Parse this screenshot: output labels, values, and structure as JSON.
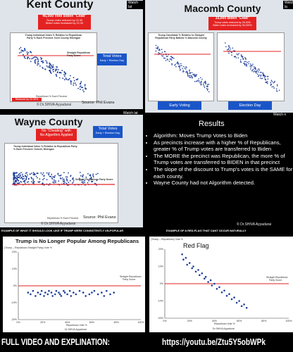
{
  "top_left": {
    "title": "Kent County",
    "red_box": [
      "45,000 Vote Biden \"Lead\"",
      "Trump votes reduced by 22.39",
      "Biden votes increased by 22.30"
    ],
    "chart_title": [
      "Trump Individual Votes % Relative to Republican",
      "Party % Each Precinct: Kent County Michigan"
    ],
    "line_label": "Straight Republican Party Score",
    "x_axis_label": "Republican % Each Precinct",
    "blue_box": [
      "Total Votes",
      "Early + Election Day"
    ],
    "bottom_red": "Reduced by 22.39%",
    "credit": "© Dr.SHIVA Ayyadurai",
    "source": "Source: Phil Evans",
    "watch": "Watch lat"
  },
  "top_right": {
    "title": "Macomb County",
    "red_box": [
      "33,000 Biden \"Lead\"",
      "Trump votes reduced by 26.00%",
      "Biden votes increased by 26.000%"
    ],
    "chart_title": [
      "Trump Candidate % Relative to Straight",
      "Republican Party Ballots % Macomb County"
    ],
    "label_left": "Early Voting",
    "label_right": "Election Day",
    "watch": "Watch la"
  },
  "mid_left": {
    "title": "Wayne County",
    "red_box": [
      "No \"Cheating\" with",
      "No Algorithm Applied"
    ],
    "blue_box": [
      "Total Votes",
      "Early + Election Day"
    ],
    "chart_title": [
      "Trump Individual Votes % Relative to Republican Party",
      "% Each Precinct: Detroit, Michigan"
    ],
    "line_label": "Straight Republican Party Score",
    "x_axis_label": "Republican % Each Precinct",
    "source": "Source: Phil Evans",
    "credit": "© Dr.SHIVA Ayyadurai",
    "watch": "Watch lat"
  },
  "results": {
    "heading": "Results",
    "items": [
      "Algorithm: Moves Trump Votes to Biden",
      "As precincts increase with a higher % of Republicans, greater % of Trump votes are transferred to Biden",
      "The MORE the precinct was Republican, the more % of Trump votes are transferred to BIDEN in that precinct",
      "The slope of the discount to Trump's votes is the SAME for each county.",
      "Wayne County had not Algorithm detected."
    ],
    "credit": "© Dr.SHIVA Ayyadurai",
    "watch": "Watch n"
  },
  "bottom_left": {
    "caption": "EXAMPLE OF WHAT IT SHOULD LOOK LIKE IF TRUMP WERE CONSISTENTLY UN-POPULAR",
    "chart_title": "Trump is No Longer Popular Among Republicans",
    "y_label": "(Trump – Republican Straight Party) Vote %",
    "line_label": [
      "Straight Republican",
      "Party Score"
    ],
    "x_label": "Republican Vote %",
    "credit": "Dr.SHIVA Ayyadurai",
    "x_ticks": [
      "0%",
      "20%",
      "40%",
      "60%",
      "80%",
      "100%"
    ],
    "y_ticks": [
      "20%",
      "10%",
      "0%",
      "-10%",
      "-20%"
    ]
  },
  "bottom_right": {
    "caption": "EXAMPLE OF A RED-FLAG THAT CANT OCCUR NATURALLY",
    "chart_title": "Red Flag",
    "y_label": "(Trump – Republican) Vote %",
    "line_label": [
      "Straight Republican",
      "Party Score"
    ],
    "x_label": "Republican Vote %",
    "credit": "Dr.SHIVA Ayyadurai",
    "x_ticks": [
      "0%",
      "20%",
      "40%",
      "60%",
      "80%",
      "100%"
    ],
    "y_ticks": [
      "20%",
      "10%",
      "0%",
      "-10%",
      "-20%"
    ]
  },
  "footer": {
    "left": "FULL VIDEO AND EXPLINATION:",
    "right": "https://youtu.be/Ztu5Y5obWPk"
  },
  "colors": {
    "red": "#e52222",
    "blue": "#1a55c8",
    "dot": "#1f3f9a"
  },
  "chart_data": [
    {
      "type": "scatter",
      "title": "Trump is No Longer Popular Among Republicans",
      "xlabel": "Republican Vote %",
      "ylabel": "(Trump – Republican Straight Party) Vote %",
      "xlim": [
        0,
        100
      ],
      "ylim": [
        -20,
        20
      ],
      "x": [
        8,
        10,
        12,
        14,
        16,
        18,
        19,
        21,
        22,
        24,
        25,
        27,
        28,
        30,
        31,
        33,
        34,
        35,
        37,
        38,
        40,
        42,
        43,
        45,
        47,
        50,
        53,
        55,
        58,
        60,
        62,
        65,
        68,
        70,
        72,
        75,
        78
      ],
      "y": [
        -4,
        -5,
        -3,
        -6,
        -4,
        -5,
        -3,
        -6,
        -4,
        -5,
        -3,
        -4,
        -6,
        -5,
        -3,
        -4,
        -5,
        -6,
        -3,
        -4,
        -5,
        -3,
        -6,
        -4,
        -5,
        -3,
        -4,
        -6,
        -5,
        -4,
        -3,
        -5,
        -4,
        -6,
        -3,
        -5,
        -4
      ]
    },
    {
      "type": "scatter",
      "title": "Red Flag",
      "xlabel": "Republican Vote %",
      "ylabel": "(Trump – Republican) Vote %",
      "xlim": [
        0,
        100
      ],
      "ylim": [
        -20,
        20
      ],
      "x": [
        14,
        15,
        17,
        18,
        20,
        22,
        23,
        25,
        27,
        28,
        30,
        32,
        33,
        35,
        37,
        38,
        40,
        42,
        44,
        46,
        48,
        50,
        52,
        54,
        56,
        58,
        60,
        62,
        64,
        66
      ],
      "y": [
        17,
        14,
        15,
        11,
        12,
        9,
        10,
        7,
        8,
        5,
        6,
        3,
        4,
        1,
        2,
        -1,
        0,
        -3,
        -2,
        -5,
        -4,
        -7,
        -6,
        -9,
        -8,
        -11,
        -10,
        -13,
        -12,
        -14
      ]
    }
  ]
}
